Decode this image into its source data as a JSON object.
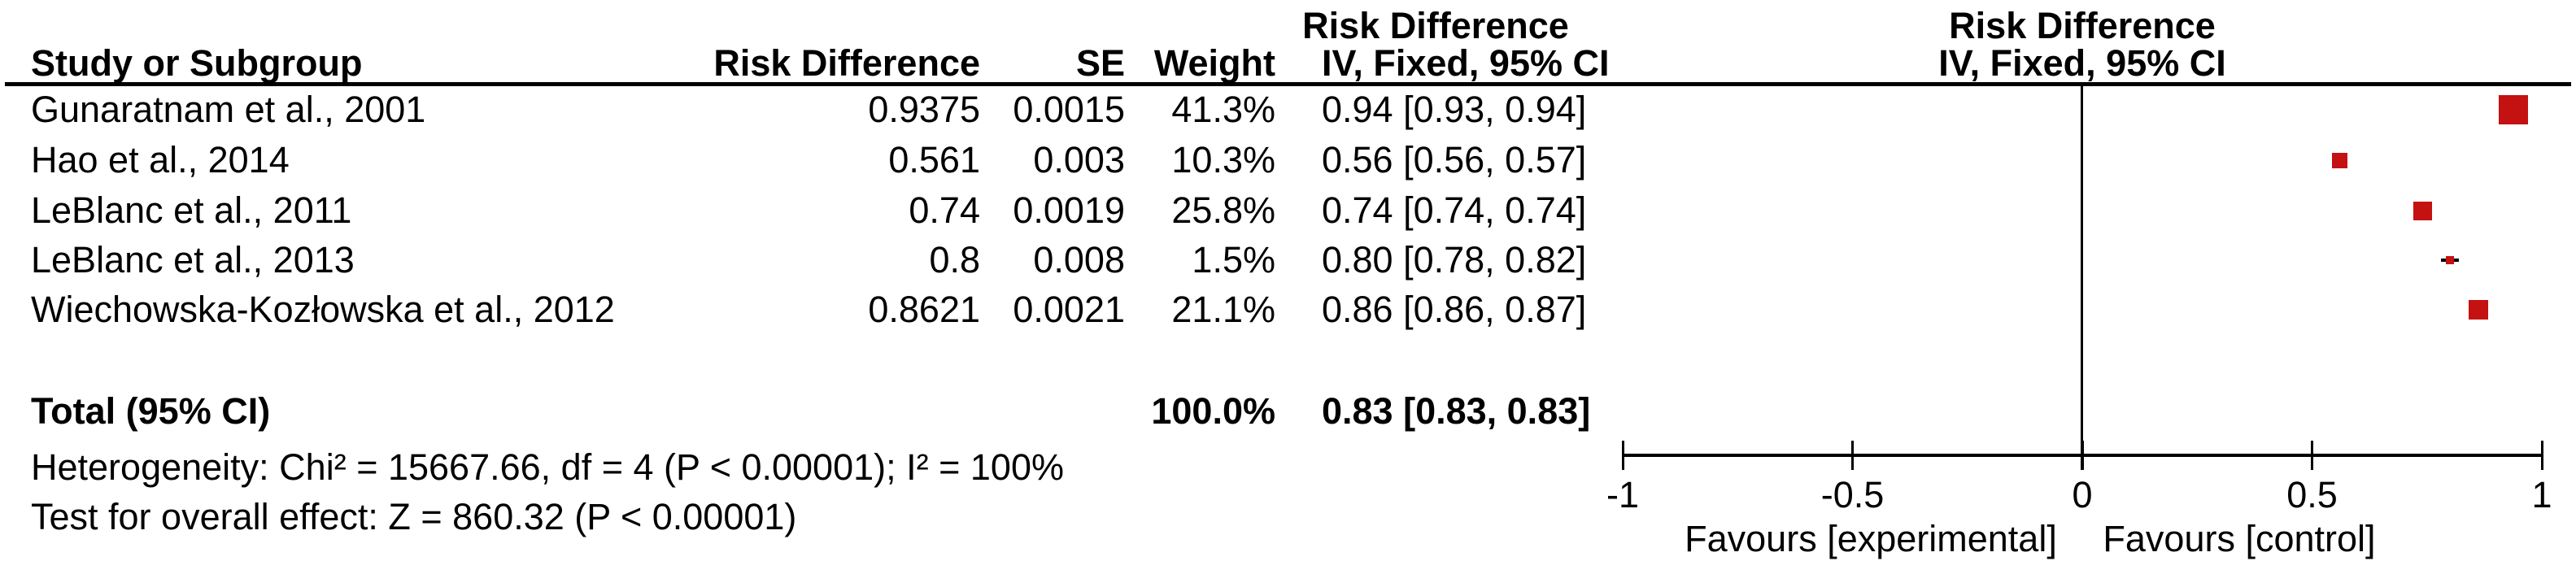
{
  "table": {
    "headers": {
      "study": "Study or Subgroup",
      "risk_difference": "Risk Difference",
      "se": "SE",
      "weight": "Weight",
      "ci": "IV, Fixed, 95% CI"
    },
    "ci_column_header": {
      "line1": "Risk Difference",
      "line2": "IV, Fixed, 95% CI"
    },
    "plot_column_header": {
      "line1": "Risk Difference",
      "line2": "IV, Fixed, 95% CI"
    },
    "rows": [
      {
        "study": "Gunaratnam et al., 2001",
        "rd": "0.9375",
        "se": "0.0015",
        "weight": "41.3%",
        "ci": "0.94 [0.93, 0.94]"
      },
      {
        "study": "Hao et al., 2014",
        "rd": "0.561",
        "se": "0.003",
        "weight": "10.3%",
        "ci": "0.56 [0.56, 0.57]"
      },
      {
        "study": "LeBlanc et al., 2011",
        "rd": "0.74",
        "se": "0.0019",
        "weight": "25.8%",
        "ci": "0.74 [0.74, 0.74]"
      },
      {
        "study": "LeBlanc et al., 2013",
        "rd": "0.8",
        "se": "0.008",
        "weight": "1.5%",
        "ci": "0.80 [0.78, 0.82]"
      },
      {
        "study": "Wiechowska-Kozłowska et al., 2012",
        "rd": "0.8621",
        "se": "0.0021",
        "weight": "21.1%",
        "ci": "0.86 [0.86, 0.87]"
      }
    ],
    "total": {
      "label": "Total (95% CI)",
      "weight": "100.0%",
      "ci": "0.83 [0.83, 0.83]"
    },
    "heterogeneity": "Heterogeneity: Chi² = 15667.66, df = 4 (P < 0.00001); I² = 100%",
    "overall_effect": "Test for overall effect: Z = 860.32 (P < 0.00001)"
  },
  "chart_data": {
    "type": "forest",
    "effect_measure": "Risk Difference",
    "method": "IV, Fixed, 95% CI",
    "studies": [
      "Gunaratnam et al., 2001",
      "Hao et al., 2014",
      "LeBlanc et al., 2011",
      "LeBlanc et al., 2013",
      "Wiechowska-Kozłowska et al., 2012"
    ],
    "estimates": [
      0.9375,
      0.561,
      0.74,
      0.8,
      0.8621
    ],
    "se": [
      0.0015,
      0.003,
      0.0019,
      0.008,
      0.0021
    ],
    "weights_pct": [
      41.3,
      10.3,
      25.8,
      1.5,
      21.1
    ],
    "ci_low": [
      0.93,
      0.56,
      0.74,
      0.78,
      0.86
    ],
    "ci_high": [
      0.94,
      0.57,
      0.74,
      0.82,
      0.87
    ],
    "total": {
      "estimate": 0.83,
      "ci_low": 0.83,
      "ci_high": 0.83,
      "weight_pct": 100.0
    },
    "heterogeneity": {
      "chi2": 15667.66,
      "df": 4,
      "p": "< 0.00001",
      "i2_pct": 100
    },
    "overall_effect": {
      "z": 860.32,
      "p": "< 0.00001"
    },
    "axis": {
      "min": -1,
      "max": 1,
      "ticks": [
        -1,
        -0.5,
        0,
        0.5,
        1
      ],
      "tick_labels": [
        "-1",
        "-0.5",
        "0",
        "0.5",
        "1"
      ]
    },
    "favours_left_label": "Favours [experimental]",
    "favours_right_label": "Favours [control]",
    "marker_color": "#C41111",
    "ci_line_color": "#000000",
    "marker_sizes_px": [
      36,
      19,
      23,
      10,
      24
    ]
  }
}
